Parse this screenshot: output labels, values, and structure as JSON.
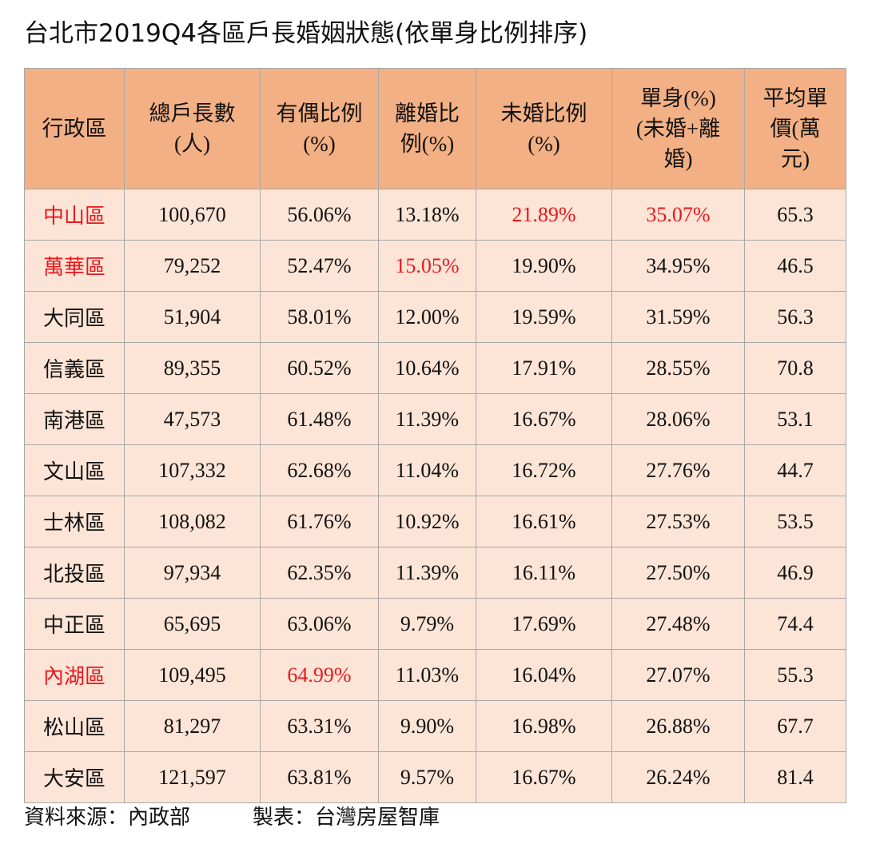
{
  "title": "台北市2019Q4各區戶長婚姻狀態(依單身比例排序)",
  "chart_data": {
    "type": "table",
    "title": "台北市2019Q4各區戶長婚姻狀態(依單身比例排序)",
    "columns": [
      "行政區",
      "總戶長數\n(人)",
      "有偶比例\n(%)",
      "離婚比\n例(%)",
      "未婚比例\n(%)",
      "單身(%)\n(未婚+離\n婚)",
      "平均單\n價(萬\n元)"
    ],
    "rows": [
      [
        "中山區",
        "100,670",
        "56.06%",
        "13.18%",
        "21.89%",
        "35.07%",
        "65.3"
      ],
      [
        "萬華區",
        "79,252",
        "52.47%",
        "15.05%",
        "19.90%",
        "34.95%",
        "46.5"
      ],
      [
        "大同區",
        "51,904",
        "58.01%",
        "12.00%",
        "19.59%",
        "31.59%",
        "56.3"
      ],
      [
        "信義區",
        "89,355",
        "60.52%",
        "10.64%",
        "17.91%",
        "28.55%",
        "70.8"
      ],
      [
        "南港區",
        "47,573",
        "61.48%",
        "11.39%",
        "16.67%",
        "28.06%",
        "53.1"
      ],
      [
        "文山區",
        "107,332",
        "62.68%",
        "11.04%",
        "16.72%",
        "27.76%",
        "44.7"
      ],
      [
        "士林區",
        "108,082",
        "61.76%",
        "10.92%",
        "16.61%",
        "27.53%",
        "53.5"
      ],
      [
        "北投區",
        "97,934",
        "62.35%",
        "11.39%",
        "16.11%",
        "27.50%",
        "46.9"
      ],
      [
        "中正區",
        "65,695",
        "63.06%",
        "9.79%",
        "17.69%",
        "27.48%",
        "74.4"
      ],
      [
        "內湖區",
        "109,495",
        "64.99%",
        "11.03%",
        "16.04%",
        "27.07%",
        "55.3"
      ],
      [
        "松山區",
        "81,297",
        "63.31%",
        "9.90%",
        "16.98%",
        "26.88%",
        "67.7"
      ],
      [
        "大安區",
        "121,597",
        "63.81%",
        "9.57%",
        "16.67%",
        "26.24%",
        "81.4"
      ]
    ],
    "highlighted_cells": [
      [
        0,
        0
      ],
      [
        0,
        4
      ],
      [
        0,
        5
      ],
      [
        1,
        0
      ],
      [
        1,
        3
      ],
      [
        9,
        0
      ],
      [
        9,
        2
      ]
    ],
    "colors": {
      "header_bg": "#f2b084",
      "cell_bg": "#fce4d6",
      "highlight_text": "#e8191e",
      "border": "#a8a8a8"
    }
  },
  "footer": {
    "source": "資料來源：內政部",
    "maker": "製表：台灣房屋智庫"
  }
}
